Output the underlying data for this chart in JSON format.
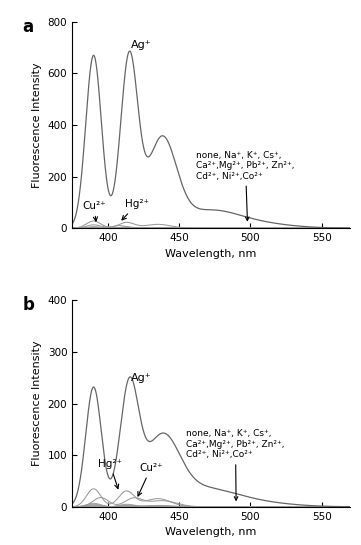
{
  "panel_a": {
    "ylim": [
      0,
      800
    ],
    "yticks": [
      0,
      200,
      400,
      600,
      800
    ],
    "xlabel": "Wavelength, nm",
    "ylabel": "Fluorescence Intensity",
    "label": "a",
    "annotation_text": "none, Na⁺, K⁺, Cs⁺,\nCa²⁺,Mg²⁺, Pb²⁺, Zn²⁺,\nCd²⁺, Ni²⁺,Co²⁺",
    "ag_label": "Ag⁺",
    "cu_label": "Cu²⁺",
    "hg_label": "Hg²⁺"
  },
  "panel_b": {
    "ylim": [
      0,
      400
    ],
    "yticks": [
      0,
      100,
      200,
      300,
      400
    ],
    "xlabel": "Wavelength, nm",
    "ylabel": "Fluorescence Intensity",
    "label": "b",
    "annotation_text": "none, Na⁺, K⁺, Cs⁺,\nCa²⁺,Mg²⁺, Pb²⁺, Zn²⁺,\nCd²⁺, Ni²⁺,Co²⁺",
    "ag_label": "Ag⁺",
    "cu_label": "Cu²⁺",
    "hg_label": "Hg²⁺"
  },
  "xlim": [
    375,
    570
  ],
  "xticks": [
    400,
    450,
    500,
    550
  ],
  "line_color": "#999999",
  "line_color_dark": "#666666",
  "bg_color": "#ffffff"
}
